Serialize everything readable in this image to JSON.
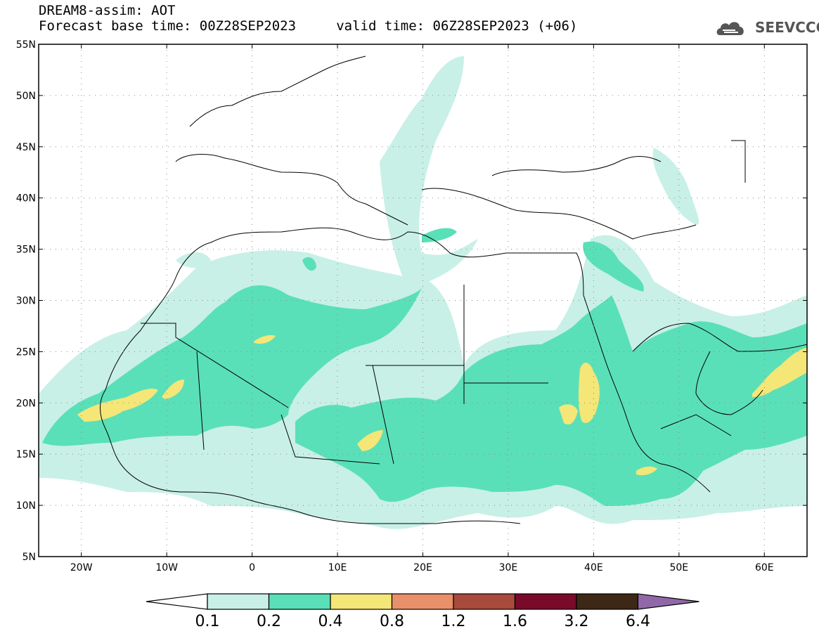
{
  "header": {
    "title_line1": "DREAM8-assim: AOT",
    "title_line2": "Forecast base time: 00Z28SEP2023     valid time: 06Z28SEP2023 (+06)"
  },
  "logo": {
    "text": "SEEVCCC",
    "icon": "cloud-icon"
  },
  "map": {
    "lon_range": [
      -25,
      65
    ],
    "lat_range": [
      5,
      55
    ],
    "y_ticks": [
      {
        "lat": 55,
        "label": "55N"
      },
      {
        "lat": 50,
        "label": "50N"
      },
      {
        "lat": 45,
        "label": "45N"
      },
      {
        "lat": 40,
        "label": "40N"
      },
      {
        "lat": 35,
        "label": "35N"
      },
      {
        "lat": 30,
        "label": "30N"
      },
      {
        "lat": 25,
        "label": "25N"
      },
      {
        "lat": 20,
        "label": "20N"
      },
      {
        "lat": 15,
        "label": "15N"
      },
      {
        "lat": 10,
        "label": "10N"
      },
      {
        "lat": 5,
        "label": "5N"
      }
    ],
    "x_ticks": [
      {
        "lon": -20,
        "label": "20W"
      },
      {
        "lon": -10,
        "label": "10W"
      },
      {
        "lon": 0,
        "label": "0"
      },
      {
        "lon": 10,
        "label": "10E"
      },
      {
        "lon": 20,
        "label": "20E"
      },
      {
        "lon": 30,
        "label": "30E"
      },
      {
        "lon": 40,
        "label": "40E"
      },
      {
        "lon": 50,
        "label": "50E"
      },
      {
        "lon": 60,
        "label": "60E"
      }
    ],
    "grid": "dotted"
  },
  "legend": {
    "levels": [
      "0.1",
      "0.2",
      "0.4",
      "0.8",
      "1.2",
      "1.6",
      "3.2",
      "6.4"
    ],
    "colors": [
      "#ffffff",
      "#c8f0e6",
      "#5ae0b8",
      "#f5e678",
      "#e8906a",
      "#a84a3c",
      "#7a0a2a",
      "#3c2814",
      "#9068a8"
    ]
  }
}
